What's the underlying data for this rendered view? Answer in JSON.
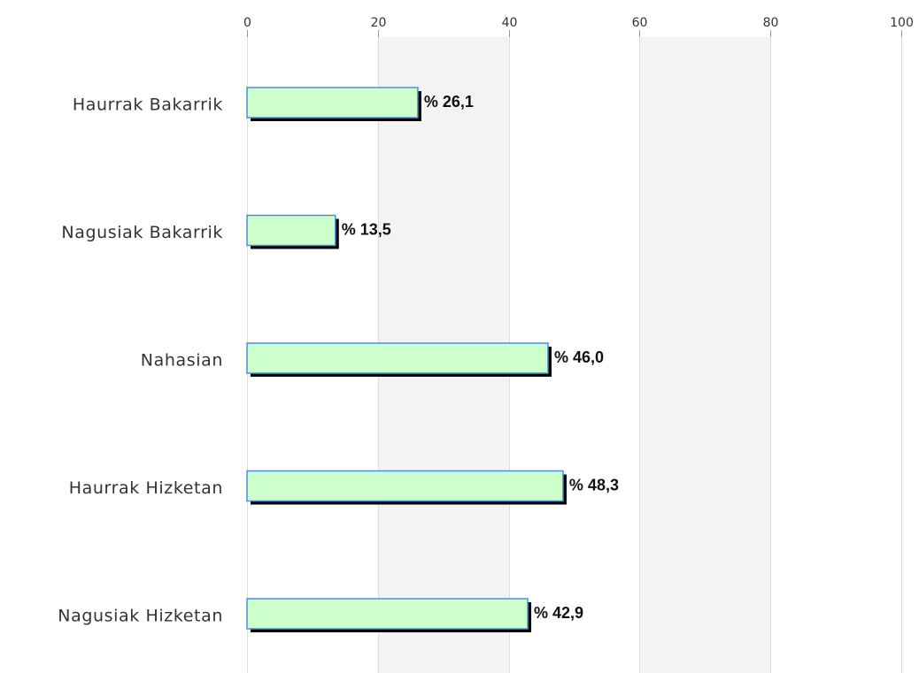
{
  "chart_data": {
    "type": "bar",
    "orientation": "horizontal",
    "title": "",
    "xlabel": "",
    "ylabel": "",
    "categories": [
      "Haurrak Bakarrik",
      "Nagusiak Bakarrik",
      "Nahasian",
      "Haurrak Hizketan",
      "Nagusiak Hizketan"
    ],
    "values": [
      26.1,
      13.5,
      46.0,
      48.3,
      42.9
    ],
    "value_labels": [
      "% 26,1",
      "% 13,5",
      "% 46,0",
      "% 48,3",
      "% 42,9"
    ],
    "xlim": [
      0,
      100
    ],
    "xticks": [
      0,
      20,
      40,
      60,
      80,
      100
    ],
    "xtick_labels": [
      "0",
      "20",
      "40",
      "60",
      "80",
      "100"
    ],
    "axis_position": "top",
    "grid": true,
    "alternating_bands": true,
    "legend": "none",
    "colors": {
      "bar_fill": "#ccffcc",
      "bar_edge": "#4a90d9",
      "bar_shadow": "#000000",
      "band": "#f3f3f3",
      "grid": "#dddddd"
    }
  }
}
